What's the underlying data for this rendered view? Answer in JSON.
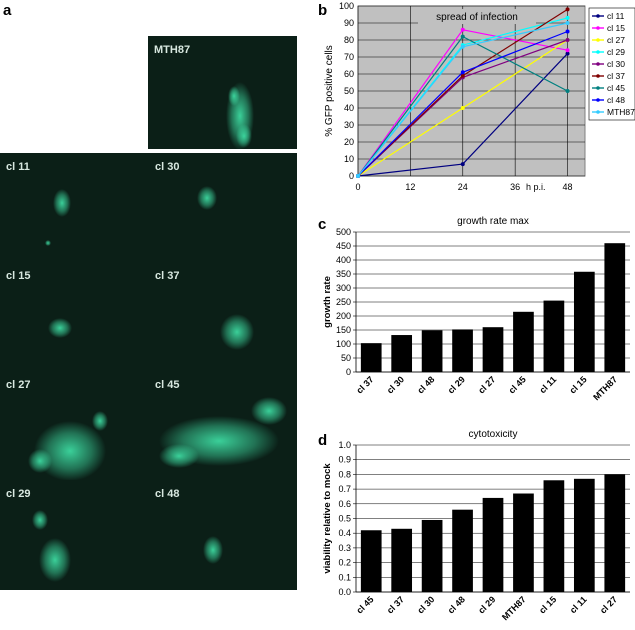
{
  "panels": {
    "a": {
      "letter": "a",
      "images": [
        {
          "label": "MTH87",
          "key": "mth87"
        },
        {
          "label": "cl 11",
          "key": "cl11"
        },
        {
          "label": "cl 30",
          "key": "cl30"
        },
        {
          "label": "cl 15",
          "key": "cl15"
        },
        {
          "label": "cl 37",
          "key": "cl37"
        },
        {
          "label": "cl 27",
          "key": "cl27"
        },
        {
          "label": "cl 45",
          "key": "cl45"
        },
        {
          "label": "cl 29",
          "key": "cl29"
        },
        {
          "label": "cl 48",
          "key": "cl48"
        }
      ]
    },
    "b": {
      "letter": "b"
    },
    "c": {
      "letter": "c"
    },
    "d": {
      "letter": "d"
    }
  },
  "colors": {
    "micro_bg": "#0b1f17",
    "cell_glow": "#3dd9a0",
    "chart_bg": "#c0c0c0",
    "bar": "#000000"
  },
  "chart_data": [
    {
      "id": "b",
      "type": "line",
      "title": "spread of infection",
      "xlabel": "h p.i.",
      "ylabel": "% GFP positive cells",
      "x": [
        0,
        24,
        48
      ],
      "xticks": [
        0,
        12,
        24,
        36,
        48
      ],
      "xlim": [
        0,
        52
      ],
      "ylim": [
        0,
        100
      ],
      "yticks": [
        0,
        10,
        20,
        30,
        40,
        50,
        60,
        70,
        80,
        90,
        100
      ],
      "grid": true,
      "legend": "right",
      "series": [
        {
          "name": "cl 11",
          "color": "#000080",
          "marker": "diamond",
          "values": [
            0,
            7,
            72
          ]
        },
        {
          "name": "cl 15",
          "color": "#ff00ff",
          "marker": "square",
          "values": [
            0,
            86,
            74
          ]
        },
        {
          "name": "cl 27",
          "color": "#ffff00",
          "marker": "triangle",
          "values": [
            0,
            40,
            80
          ]
        },
        {
          "name": "cl 29",
          "color": "#00ffff",
          "marker": "x",
          "values": [
            0,
            77,
            93
          ]
        },
        {
          "name": "cl 30",
          "color": "#800080",
          "marker": "star",
          "values": [
            0,
            58,
            80
          ]
        },
        {
          "name": "cl 37",
          "color": "#800000",
          "marker": "circle",
          "values": [
            0,
            59,
            98
          ]
        },
        {
          "name": "cl 45",
          "color": "#008080",
          "marker": "plus",
          "values": [
            0,
            82,
            50
          ]
        },
        {
          "name": "cl 48",
          "color": "#0000ff",
          "marker": "dash",
          "values": [
            0,
            61,
            85
          ]
        },
        {
          "name": "MTH87",
          "color": "#33ccff",
          "marker": "none",
          "values": [
            0,
            76,
            90
          ]
        }
      ]
    },
    {
      "id": "c",
      "type": "bar",
      "title": "growth rate max",
      "ylabel": "growth rate",
      "categories": [
        "cl 37",
        "cl 30",
        "cl 48",
        "cl 29",
        "cl 27",
        "cl 45",
        "cl 11",
        "cl 15",
        "MTH87"
      ],
      "values": [
        103,
        132,
        149,
        152,
        160,
        215,
        255,
        358,
        460
      ],
      "ylim": [
        0,
        500
      ],
      "yticks": [
        0,
        50,
        100,
        150,
        200,
        250,
        300,
        350,
        400,
        450,
        500
      ]
    },
    {
      "id": "d",
      "type": "bar",
      "title": "cytotoxicity",
      "ylabel": "viability relative to mock",
      "categories": [
        "cl 45",
        "cl 37",
        "cl 30",
        "cl 48",
        "cl 29",
        "MTH87",
        "cl 15",
        "cl 11",
        "cl 27"
      ],
      "values": [
        0.42,
        0.43,
        0.49,
        0.56,
        0.64,
        0.67,
        0.76,
        0.77,
        0.8
      ],
      "ylim": [
        0,
        1
      ],
      "yticks": [
        "0.0",
        "0.1",
        "0.2",
        "0.3",
        "0.4",
        "0.5",
        "0.6",
        "0.7",
        "0.8",
        "0.9",
        "1.0"
      ]
    }
  ]
}
